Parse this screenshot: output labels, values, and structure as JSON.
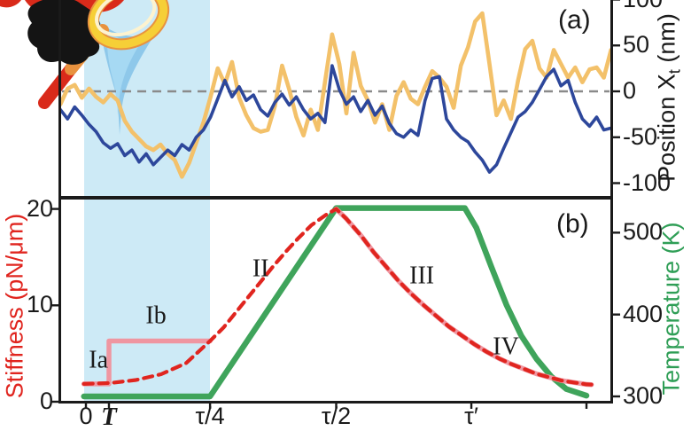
{
  "figure": {
    "panel_a_tag": "(a)",
    "panel_b_tag": "(b)"
  },
  "colors": {
    "background": "#ffffff",
    "highlight_band": "#cdeaf6",
    "orange_trace": "#f3c16a",
    "blue_trace": "#2d479b",
    "zero_line": "#8a8a8a",
    "stiffness_red": "#e0251f",
    "stiffness_step_pink": "#ef96a1",
    "temperature_green": "#3fa45b",
    "axis_black": "#1a1a1a"
  },
  "icons": [
    {
      "name": "magnifier-lens-icon",
      "desc": "yellow magnifying glass lens"
    },
    {
      "name": "magnifier-handle-icon",
      "desc": "orange and red magnifier handle"
    },
    {
      "name": "hand-mitt-icon",
      "desc": "black glove holding the magnifier"
    },
    {
      "name": "red-cape-icon",
      "desc": "red cape shape at top left"
    },
    {
      "name": "optical-trap-funnel-icon",
      "desc": "light blue optical-trap funnel pointing at the trace"
    }
  ],
  "chart_data": [
    {
      "panel": "a",
      "type": "line",
      "x_unit": "time in units of tau",
      "y_right": {
        "title_pre": "Position X",
        "title_sub": "t",
        "title_post": " (nm)",
        "ticks": [
          100,
          50,
          0,
          -50,
          -100
        ],
        "range": [
          -115,
          108
        ]
      },
      "zero_line_nm": 0,
      "shaded_region_tau": [
        0,
        0.248
      ],
      "series": [
        {
          "name": "orange-trace",
          "color_key": "orange_trace",
          "t_start": -0.051,
          "t_end": 1.049,
          "values_nm": [
            -14,
            3,
            7,
            -7,
            3,
            -6,
            -12,
            -3,
            -10,
            -32,
            -44,
            -52,
            -60,
            -64,
            -58,
            -68,
            -75,
            -93,
            -78,
            -56,
            -34,
            -6,
            25,
            8,
            32,
            -7,
            -26,
            -40,
            -44,
            -42,
            -16,
            28,
            2,
            -28,
            -48,
            -20,
            -42,
            10,
            62,
            30,
            -24,
            42,
            6,
            -10,
            -34,
            -14,
            -42,
            -5,
            10,
            -8,
            -14,
            5,
            22,
            15,
            5,
            -18,
            28,
            48,
            76,
            85,
            30,
            -26,
            -10,
            -30,
            12,
            46,
            55,
            25,
            15,
            45,
            30,
            15,
            26,
            10,
            24,
            26,
            15,
            45
          ]
        },
        {
          "name": "blue-trace",
          "color_key": "blue_trace",
          "t_start": -0.051,
          "t_end": 1.049,
          "values_nm": [
            -20,
            -30,
            -17,
            -26,
            -36,
            -44,
            -56,
            -62,
            -57,
            -70,
            -64,
            -77,
            -68,
            -80,
            -72,
            -64,
            -70,
            -58,
            -64,
            -50,
            -42,
            -28,
            -8,
            12,
            -6,
            5,
            -10,
            -4,
            -20,
            -27,
            -12,
            -3,
            -15,
            -6,
            -20,
            -30,
            -24,
            -34,
            28,
            2,
            -14,
            -6,
            -22,
            -10,
            -26,
            -16,
            -35,
            -46,
            -50,
            -42,
            -48,
            -10,
            14,
            16,
            -30,
            -42,
            -50,
            -55,
            -66,
            -75,
            -88,
            -80,
            -62,
            -45,
            -28,
            -22,
            -12,
            2,
            16,
            24,
            6,
            12,
            -12,
            -30,
            -38,
            -28,
            -42,
            -40
          ]
        }
      ]
    },
    {
      "panel": "b",
      "type": "line",
      "x_ticks": [
        {
          "t": 0.0,
          "label": "0",
          "script": false
        },
        {
          "t": 0.046,
          "label": "T",
          "script": true
        },
        {
          "t": 0.248,
          "label": "τ/4",
          "script": false
        },
        {
          "t": 0.5,
          "label": "τ/2",
          "script": false
        },
        {
          "t": 0.77,
          "label": "τ′",
          "script": false
        },
        {
          "t": 1.0,
          "label": "",
          "script": false
        }
      ],
      "y_left": {
        "title": "Stiffness (pN/μm)",
        "unit": "pN/μm",
        "ticks": [
          20,
          10,
          0
        ],
        "range": [
          0,
          20
        ]
      },
      "y_right": {
        "title": "Temperature (K)",
        "unit": "K",
        "ticks": [
          500,
          400,
          300
        ],
        "range": [
          290,
          545
        ]
      },
      "series": [
        {
          "name": "temperature",
          "axis": "right",
          "color_key": "temperature_green",
          "dashed": false,
          "width": 6.5,
          "points": [
            [
              -0.004,
              300
            ],
            [
              0.248,
              300
            ],
            [
              0.5,
              530
            ],
            [
              0.757,
              530
            ],
            [
              0.78,
              506
            ],
            [
              0.81,
              458
            ],
            [
              0.84,
              412
            ],
            [
              0.87,
              374
            ],
            [
              0.9,
              346
            ],
            [
              0.93,
              324
            ],
            [
              0.96,
              309
            ],
            [
              1.0,
              301
            ]
          ]
        },
        {
          "name": "stiffness-step-phase-I",
          "axis": "left",
          "color_key": "stiffness_step_pink",
          "dashed": false,
          "width": 5.5,
          "points": [
            [
              -0.004,
              1.85
            ],
            [
              0.046,
              1.85
            ],
            [
              0.046,
              6.3
            ],
            [
              0.248,
              6.3
            ]
          ]
        },
        {
          "name": "stiffness-step-underlay-decay",
          "axis": "left",
          "color_key": "stiffness_step_pink",
          "dashed": false,
          "width": 5.5,
          "points": [
            [
              0.5,
              20.0
            ],
            [
              0.52,
              19.0
            ],
            [
              0.55,
              17.2
            ],
            [
              0.575,
              15.5
            ],
            [
              0.6,
              14.0
            ],
            [
              0.625,
              12.5
            ],
            [
              0.65,
              11.2
            ],
            [
              0.675,
              10.0
            ],
            [
              0.7,
              8.9
            ],
            [
              0.725,
              7.8
            ],
            [
              0.75,
              6.9
            ],
            [
              0.775,
              6.0
            ],
            [
              0.8,
              5.2
            ],
            [
              0.825,
              4.5
            ],
            [
              0.85,
              3.9
            ],
            [
              0.875,
              3.4
            ],
            [
              0.9,
              2.9
            ],
            [
              0.925,
              2.55
            ],
            [
              0.95,
              2.2
            ],
            [
              0.975,
              2.0
            ],
            [
              1.0,
              1.8
            ],
            [
              1.01,
              1.78
            ]
          ]
        },
        {
          "name": "stiffness-drive-dashed",
          "axis": "left",
          "color_key": "stiffness_red",
          "dashed": true,
          "width": 4.2,
          "points": [
            [
              -0.004,
              1.85
            ],
            [
              0.05,
              1.95
            ],
            [
              0.1,
              2.25
            ],
            [
              0.15,
              2.85
            ],
            [
              0.2,
              4.0
            ],
            [
              0.248,
              6.3
            ],
            [
              0.275,
              7.7
            ],
            [
              0.3,
              9.3
            ],
            [
              0.325,
              10.9
            ],
            [
              0.35,
              12.5
            ],
            [
              0.375,
              14.1
            ],
            [
              0.4,
              15.6
            ],
            [
              0.425,
              17.0
            ],
            [
              0.45,
              18.3
            ],
            [
              0.48,
              19.4
            ],
            [
              0.5,
              20.0
            ],
            [
              0.52,
              19.0
            ],
            [
              0.55,
              17.2
            ],
            [
              0.575,
              15.5
            ],
            [
              0.6,
              14.0
            ],
            [
              0.625,
              12.5
            ],
            [
              0.65,
              11.2
            ],
            [
              0.675,
              10.0
            ],
            [
              0.7,
              8.9
            ],
            [
              0.725,
              7.8
            ],
            [
              0.75,
              6.9
            ],
            [
              0.775,
              6.0
            ],
            [
              0.8,
              5.2
            ],
            [
              0.825,
              4.5
            ],
            [
              0.85,
              3.9
            ],
            [
              0.875,
              3.4
            ],
            [
              0.9,
              2.9
            ],
            [
              0.925,
              2.55
            ],
            [
              0.95,
              2.2
            ],
            [
              0.975,
              2.0
            ],
            [
              1.0,
              1.8
            ],
            [
              1.01,
              1.78
            ]
          ]
        }
      ],
      "annotations": [
        {
          "label": "Ia",
          "t": 0.025,
          "stiffness": 4.3
        },
        {
          "label": "Ib",
          "t": 0.14,
          "stiffness": 8.9
        },
        {
          "label": "II",
          "t": 0.349,
          "stiffness": 13.8
        },
        {
          "label": "III",
          "t": 0.671,
          "stiffness": 13.1
        },
        {
          "label": "IV",
          "t": 0.839,
          "stiffness": 5.7
        }
      ]
    }
  ]
}
